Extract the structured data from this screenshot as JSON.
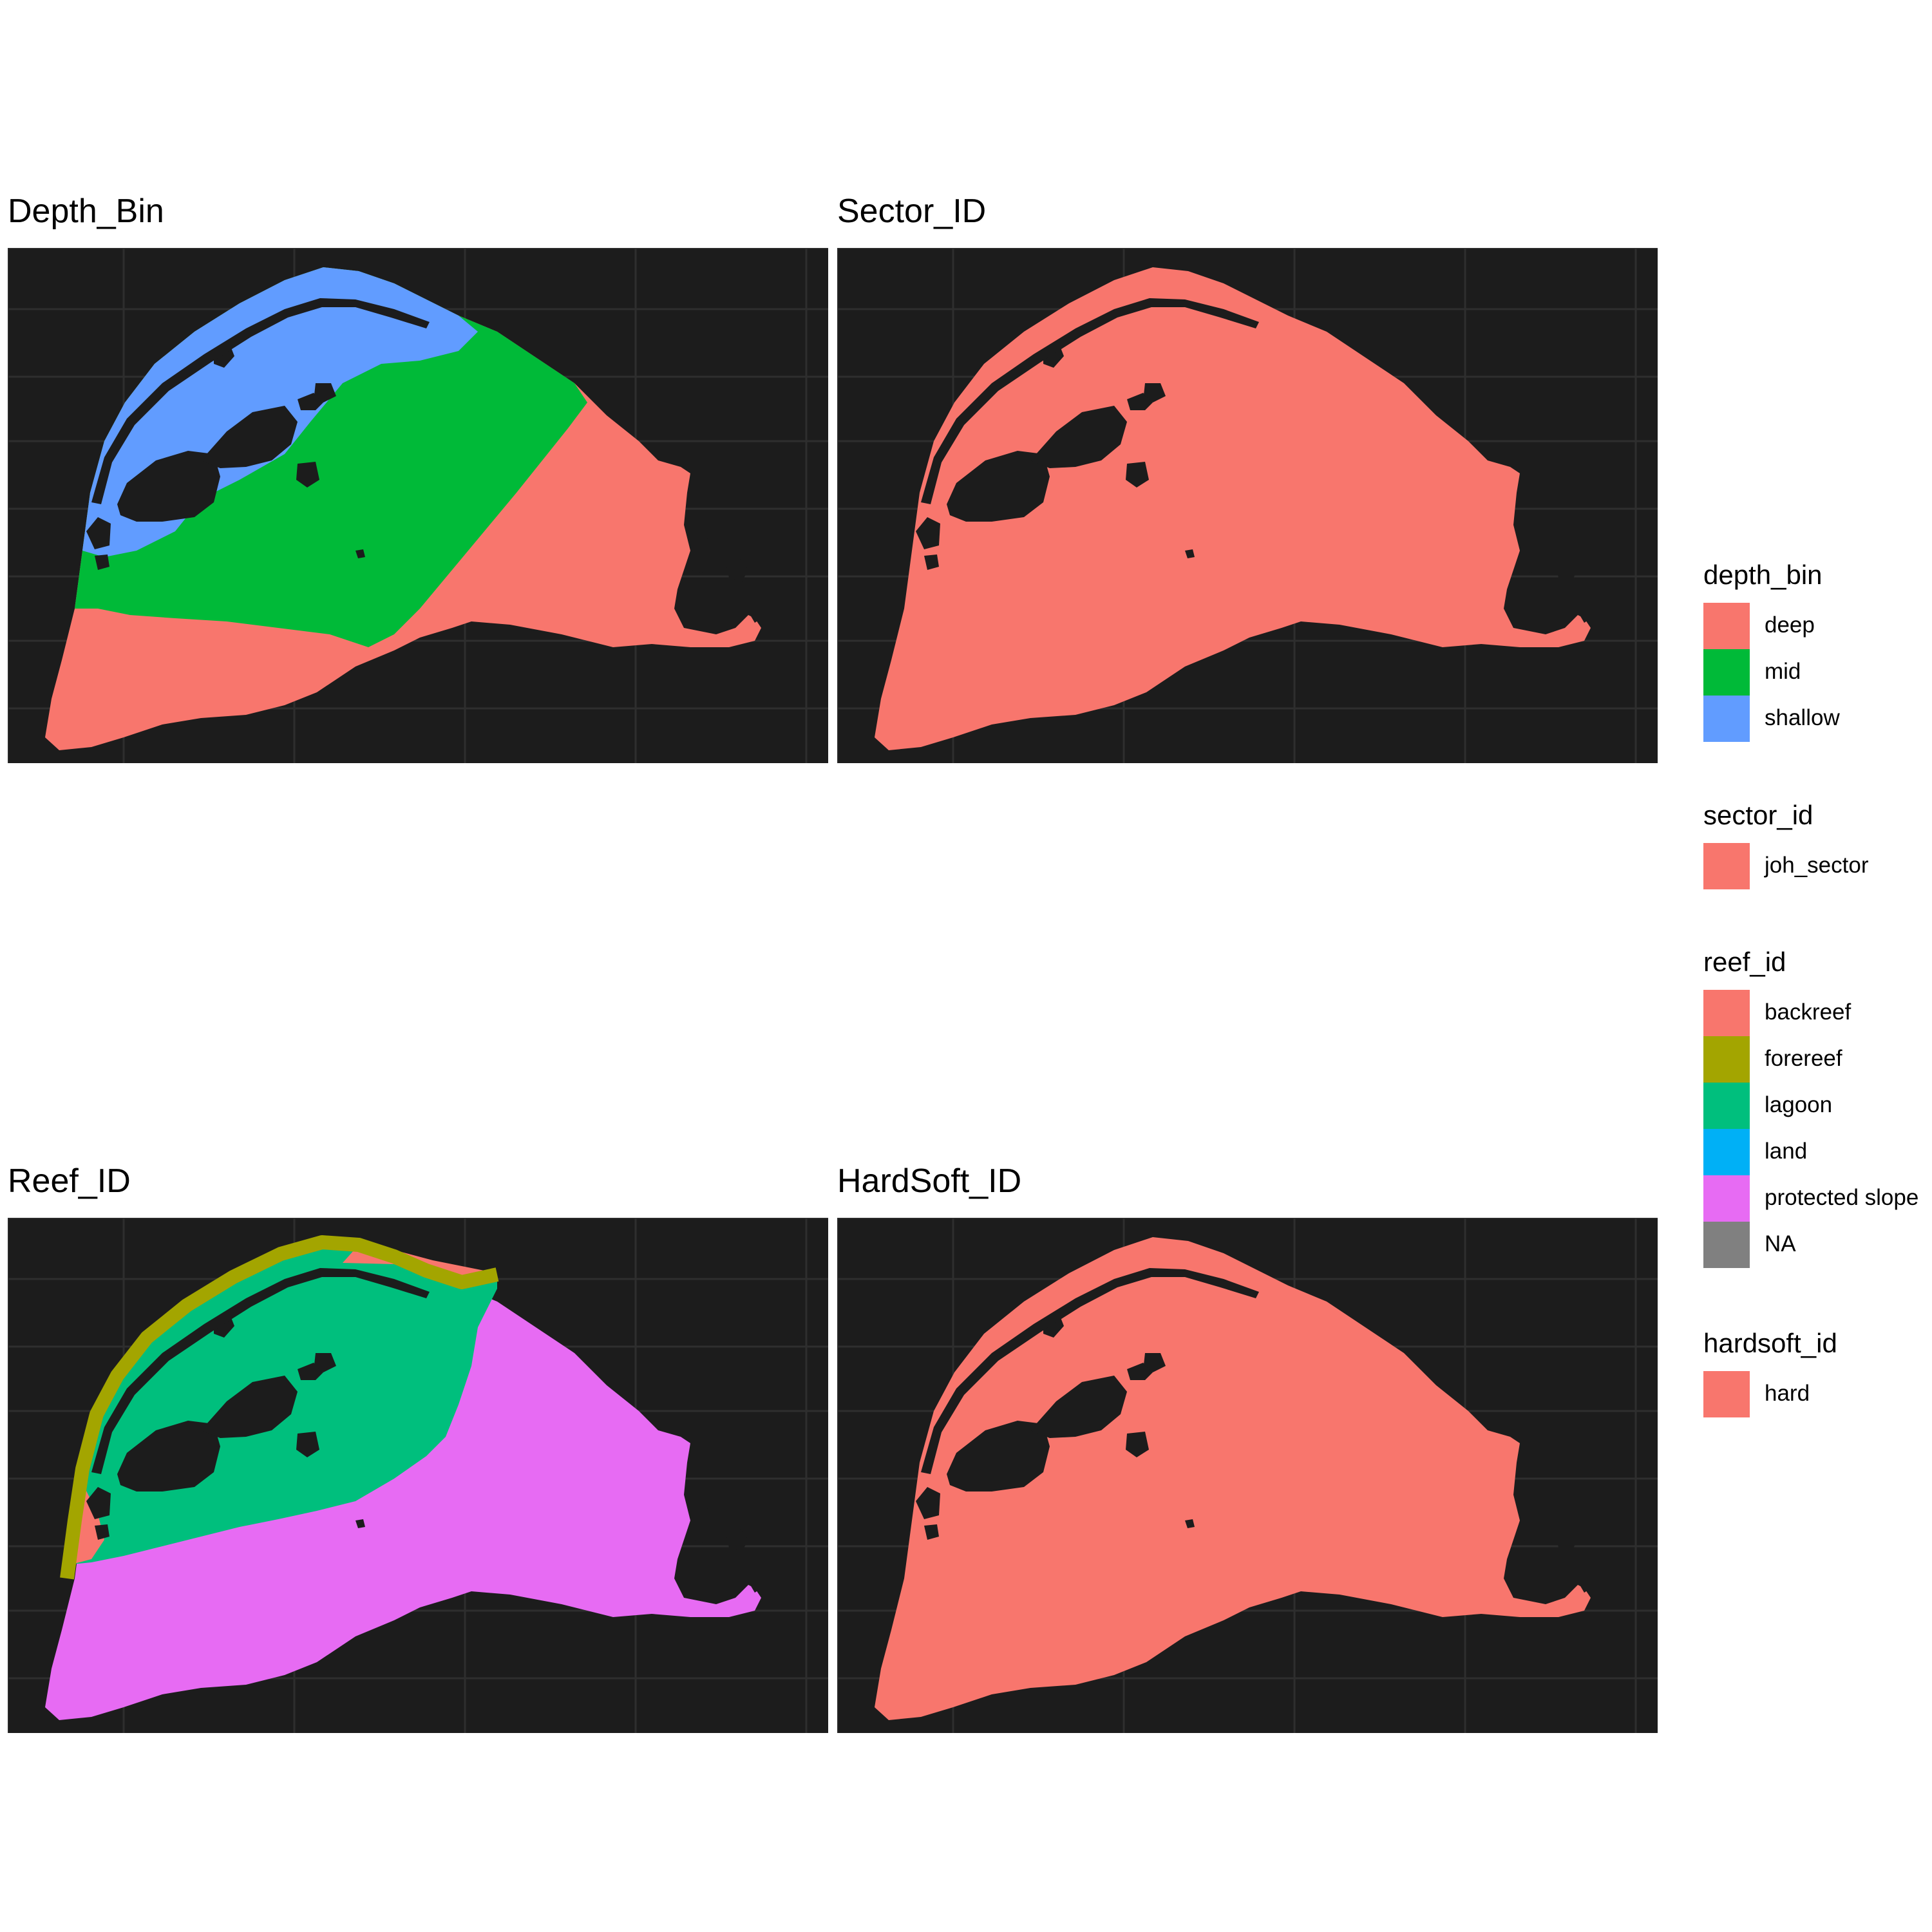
{
  "panels": [
    {
      "title": "Depth_Bin"
    },
    {
      "title": "Sector_ID"
    },
    {
      "title": "Reef_ID"
    },
    {
      "title": "HardSoft_ID"
    }
  ],
  "legends": [
    {
      "title": "depth_bin",
      "items": [
        {
          "label": "deep",
          "color": "#F8766D"
        },
        {
          "label": "mid",
          "color": "#00BA38"
        },
        {
          "label": "shallow",
          "color": "#619CFF"
        }
      ]
    },
    {
      "title": "sector_id",
      "items": [
        {
          "label": "joh_sector",
          "color": "#F8766D"
        }
      ]
    },
    {
      "title": "reef_id",
      "items": [
        {
          "label": "backreef",
          "color": "#F8766D"
        },
        {
          "label": "forereef",
          "color": "#A3A500"
        },
        {
          "label": "lagoon",
          "color": "#00BF7D"
        },
        {
          "label": "land",
          "color": "#00B0F6"
        },
        {
          "label": "protected slope",
          "color": "#E76BF3"
        },
        {
          "label": "NA",
          "color": "#808080"
        }
      ]
    },
    {
      "title": "hardsoft_id",
      "items": [
        {
          "label": "hard",
          "color": "#F8766D"
        }
      ]
    }
  ],
  "colors": {
    "panel_background": "#1c1c1c",
    "grid": "#2e2e2e",
    "land_holes": "#1c1c1c"
  }
}
